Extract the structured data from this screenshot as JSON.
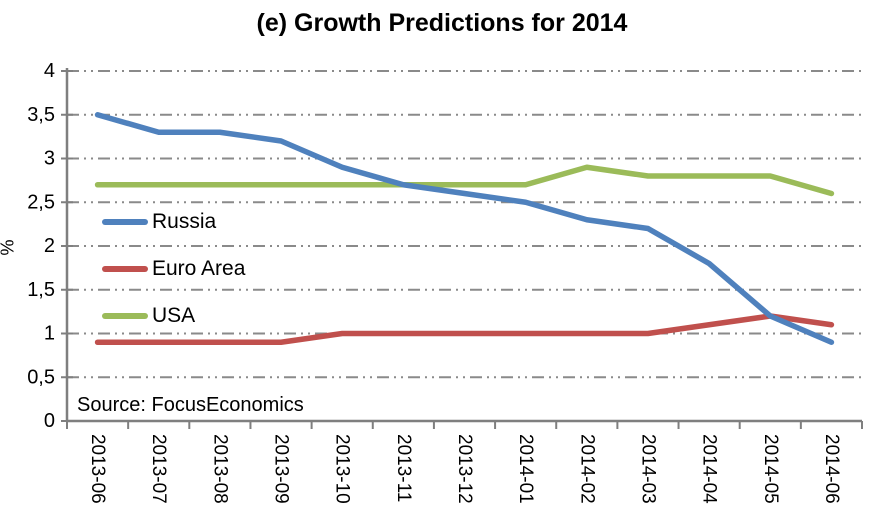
{
  "title": "(e) Growth Predictions for 2014",
  "source_note": "Source: FocusEconomics",
  "colors": {
    "russia": "#4F81BD",
    "euro_area": "#C0504D",
    "usa": "#9BBB59",
    "gridline": "#8A8A8A",
    "axis": "#7F7F7F",
    "text": "#000000",
    "background": "#FFFFFF"
  },
  "chart_data": {
    "type": "line",
    "title": "(e) Growth Predictions for 2014",
    "xlabel": "",
    "ylabel": "%",
    "ylim": [
      0,
      4
    ],
    "ytick_step": 0.5,
    "decimal_separator": ",",
    "grid": "horizontal dashed (dash-dot-dot)",
    "legend_position": "inside upper-left",
    "categories": [
      "2013-06",
      "2013-07",
      "2013-08",
      "2013-09",
      "2013-10",
      "2013-11",
      "2013-12",
      "2014-01",
      "2014-02",
      "2014-03",
      "2014-04",
      "2014-05",
      "2014-06"
    ],
    "series": [
      {
        "name": "Russia",
        "color": "#4F81BD",
        "values": [
          3.5,
          3.3,
          3.3,
          3.2,
          2.9,
          2.7,
          2.6,
          2.5,
          2.3,
          2.2,
          1.8,
          1.2,
          0.9
        ]
      },
      {
        "name": "Euro Area",
        "color": "#C0504D",
        "values": [
          0.9,
          0.9,
          0.9,
          0.9,
          1.0,
          1.0,
          1.0,
          1.0,
          1.0,
          1.0,
          1.1,
          1.2,
          1.1
        ]
      },
      {
        "name": "USA",
        "color": "#9BBB59",
        "values": [
          2.7,
          2.7,
          2.7,
          2.7,
          2.7,
          2.7,
          2.7,
          2.7,
          2.9,
          2.8,
          2.8,
          2.8,
          2.6
        ]
      }
    ],
    "source_note": "Source: FocusEconomics"
  }
}
